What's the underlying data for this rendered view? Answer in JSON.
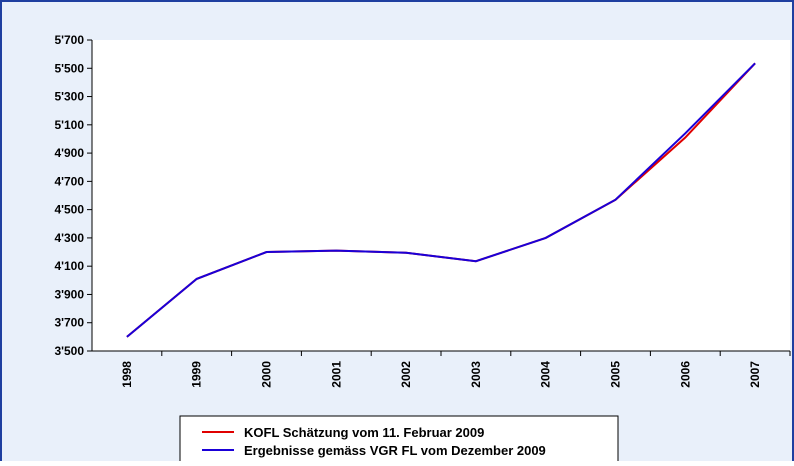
{
  "chart_data": {
    "type": "line",
    "categories": [
      "1998",
      "1999",
      "2000",
      "2001",
      "2002",
      "2003",
      "2004",
      "2005",
      "2006",
      "2007"
    ],
    "series": [
      {
        "name": "KOFL Schätzung vom 11. Februar 2009",
        "color": "#e00000",
        "values": [
          3600,
          4010,
          4200,
          4210,
          4195,
          4135,
          4300,
          4570,
          5010,
          5535
        ]
      },
      {
        "name": "Ergebnisse gemäss VGR FL vom Dezember 2009",
        "color": "#1a00d8",
        "values": [
          3600,
          4010,
          4200,
          4210,
          4195,
          4135,
          4300,
          4570,
          5040,
          5535
        ]
      }
    ],
    "ylim": [
      3500,
      5700
    ],
    "yticks": [
      {
        "value": 3500,
        "label": "3'500"
      },
      {
        "value": 3700,
        "label": "3'700"
      },
      {
        "value": 3900,
        "label": "3'900"
      },
      {
        "value": 4100,
        "label": "4'100"
      },
      {
        "value": 4300,
        "label": "4'300"
      },
      {
        "value": 4500,
        "label": "4'500"
      },
      {
        "value": 4700,
        "label": "4'700"
      },
      {
        "value": 4900,
        "label": "4'900"
      },
      {
        "value": 5100,
        "label": "5'100"
      },
      {
        "value": 5300,
        "label": "5'300"
      },
      {
        "value": 5500,
        "label": "5'500"
      },
      {
        "value": 5700,
        "label": "5'700"
      }
    ],
    "grid": false,
    "legend": "bottom"
  }
}
